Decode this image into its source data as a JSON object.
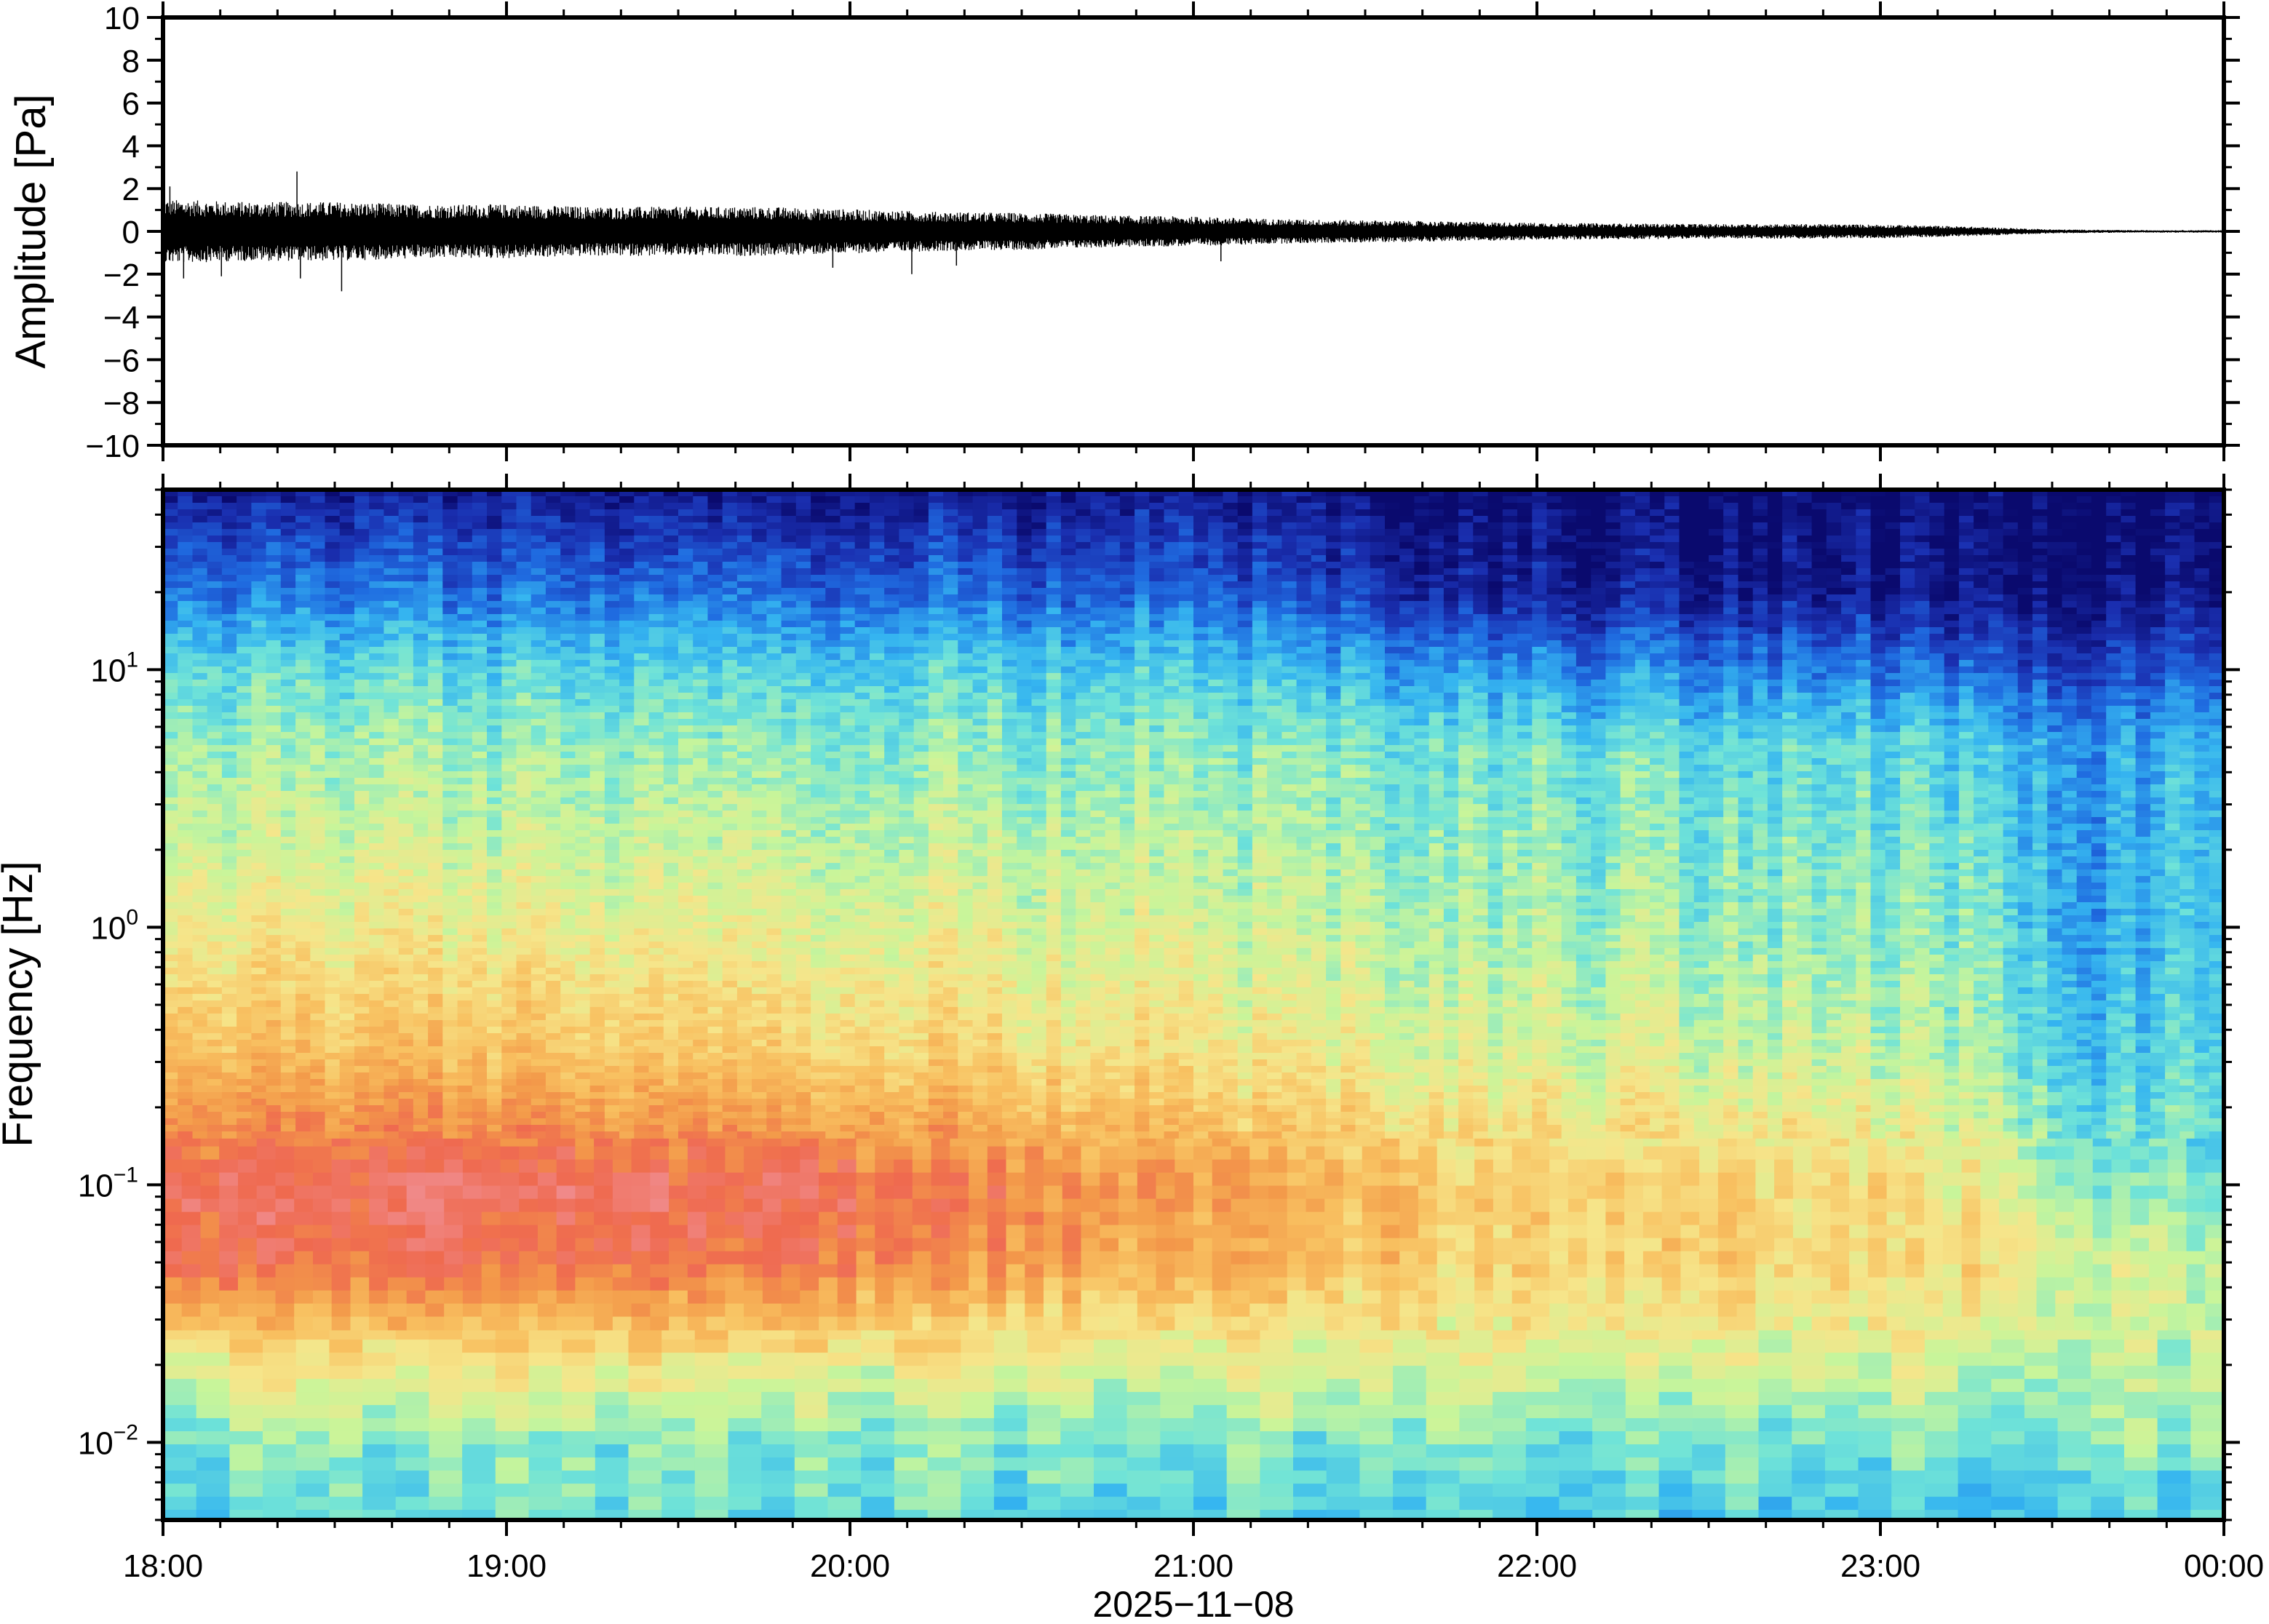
{
  "chart_data": [
    {
      "type": "line",
      "panel": "waveform",
      "ylabel": "Amplitude [Pa]",
      "ylim": [
        -10,
        10
      ],
      "y_ticks": [
        {
          "value": 10,
          "label": "10"
        },
        {
          "value": 8,
          "label": "8"
        },
        {
          "value": 6,
          "label": "6"
        },
        {
          "value": 4,
          "label": "4"
        },
        {
          "value": 2,
          "label": "2"
        },
        {
          "value": 0,
          "label": "0"
        },
        {
          "value": -2,
          "label": "−2"
        },
        {
          "value": -4,
          "label": "−4"
        },
        {
          "value": -6,
          "label": "−6"
        },
        {
          "value": -8,
          "label": "−8"
        },
        {
          "value": -10,
          "label": "−10"
        }
      ],
      "x_range_hours": [
        18,
        24
      ],
      "envelope": {
        "x_hours": [
          18.0,
          18.25,
          18.5,
          18.75,
          19.0,
          19.25,
          19.5,
          19.75,
          20.0,
          20.25,
          20.5,
          20.75,
          21.0,
          21.25,
          21.5,
          21.75,
          22.0,
          22.25,
          22.5,
          22.75,
          23.0,
          23.25,
          23.5,
          23.75,
          24.0
        ],
        "amplitude": [
          1.3,
          1.2,
          1.2,
          1.1,
          1.1,
          1.0,
          1.0,
          1.0,
          0.9,
          0.8,
          0.75,
          0.65,
          0.6,
          0.5,
          0.45,
          0.4,
          0.35,
          0.32,
          0.3,
          0.3,
          0.28,
          0.2,
          0.08,
          0.05,
          0.05
        ]
      },
      "spikes": [
        {
          "x": 18.02,
          "y": 2.1
        },
        {
          "x": 18.06,
          "y": -2.2
        },
        {
          "x": 18.17,
          "y": -2.1
        },
        {
          "x": 18.39,
          "y": 2.8
        },
        {
          "x": 18.52,
          "y": -2.8
        },
        {
          "x": 18.4,
          "y": -2.2
        },
        {
          "x": 19.95,
          "y": -1.7
        },
        {
          "x": 20.18,
          "y": -2.0
        },
        {
          "x": 20.31,
          "y": -1.6
        },
        {
          "x": 21.08,
          "y": -1.4
        }
      ]
    },
    {
      "type": "heatmap",
      "panel": "spectrogram",
      "ylabel": "Frequency [Hz]",
      "xlabel": "2025−11−08",
      "y_scale": "log",
      "ylim": [
        0.005,
        50
      ],
      "y_ticks": [
        {
          "value": 10,
          "base": "10",
          "exp": "1"
        },
        {
          "value": 1,
          "base": "10",
          "exp": "0"
        },
        {
          "value": 0.1,
          "base": "10",
          "exp": "−1"
        },
        {
          "value": 0.01,
          "base": "10",
          "exp": "−2"
        }
      ],
      "x_ticks": [
        {
          "value": 18,
          "label": "18:00"
        },
        {
          "value": 19,
          "label": "19:00"
        },
        {
          "value": 20,
          "label": "20:00"
        },
        {
          "value": 21,
          "label": "21:00"
        },
        {
          "value": 22,
          "label": "22:00"
        },
        {
          "value": 23,
          "label": "23:00"
        },
        {
          "value": 24,
          "label": "00:00"
        }
      ],
      "colormap": "jet-like",
      "colors": [
        "#0a0a6e",
        "#1a2fb0",
        "#1f6be0",
        "#35b5f0",
        "#6fe3d8",
        "#c8f59a",
        "#f6e58a",
        "#f8c060",
        "#f39a4a",
        "#ef6a4f",
        "#f08a8a"
      ],
      "time_anchors_hours": [
        18,
        19,
        20,
        21,
        21.85,
        22,
        23,
        23.3,
        23.6,
        24
      ],
      "log_freq_anchors": [
        -2.3,
        -2.0,
        -1.7,
        -1.3,
        -1.0,
        -0.5,
        0.0,
        0.7,
        1.0,
        1.3,
        1.7
      ],
      "intensity_grid": [
        [
          0.38,
          0.42,
          0.58,
          0.88,
          0.92,
          0.7,
          0.58,
          0.46,
          0.38,
          0.22,
          0.05
        ],
        [
          0.38,
          0.42,
          0.58,
          0.87,
          0.92,
          0.7,
          0.57,
          0.45,
          0.37,
          0.21,
          0.05
        ],
        [
          0.38,
          0.42,
          0.56,
          0.85,
          0.9,
          0.66,
          0.56,
          0.44,
          0.36,
          0.2,
          0.04
        ],
        [
          0.36,
          0.42,
          0.55,
          0.74,
          0.78,
          0.6,
          0.52,
          0.43,
          0.34,
          0.18,
          0.04
        ],
        [
          0.36,
          0.42,
          0.54,
          0.66,
          0.66,
          0.54,
          0.47,
          0.4,
          0.26,
          0.06,
          0.0
        ],
        [
          0.36,
          0.42,
          0.54,
          0.66,
          0.66,
          0.54,
          0.47,
          0.4,
          0.25,
          0.06,
          0.0
        ],
        [
          0.35,
          0.42,
          0.54,
          0.64,
          0.64,
          0.5,
          0.44,
          0.37,
          0.22,
          0.04,
          0.0
        ],
        [
          0.35,
          0.42,
          0.52,
          0.62,
          0.56,
          0.45,
          0.41,
          0.34,
          0.18,
          0.03,
          0.0
        ],
        [
          0.35,
          0.42,
          0.48,
          0.55,
          0.43,
          0.35,
          0.28,
          0.27,
          0.14,
          0.02,
          0.0
        ],
        [
          0.35,
          0.44,
          0.52,
          0.52,
          0.42,
          0.36,
          0.33,
          0.32,
          0.16,
          0.03,
          0.0
        ]
      ]
    }
  ]
}
